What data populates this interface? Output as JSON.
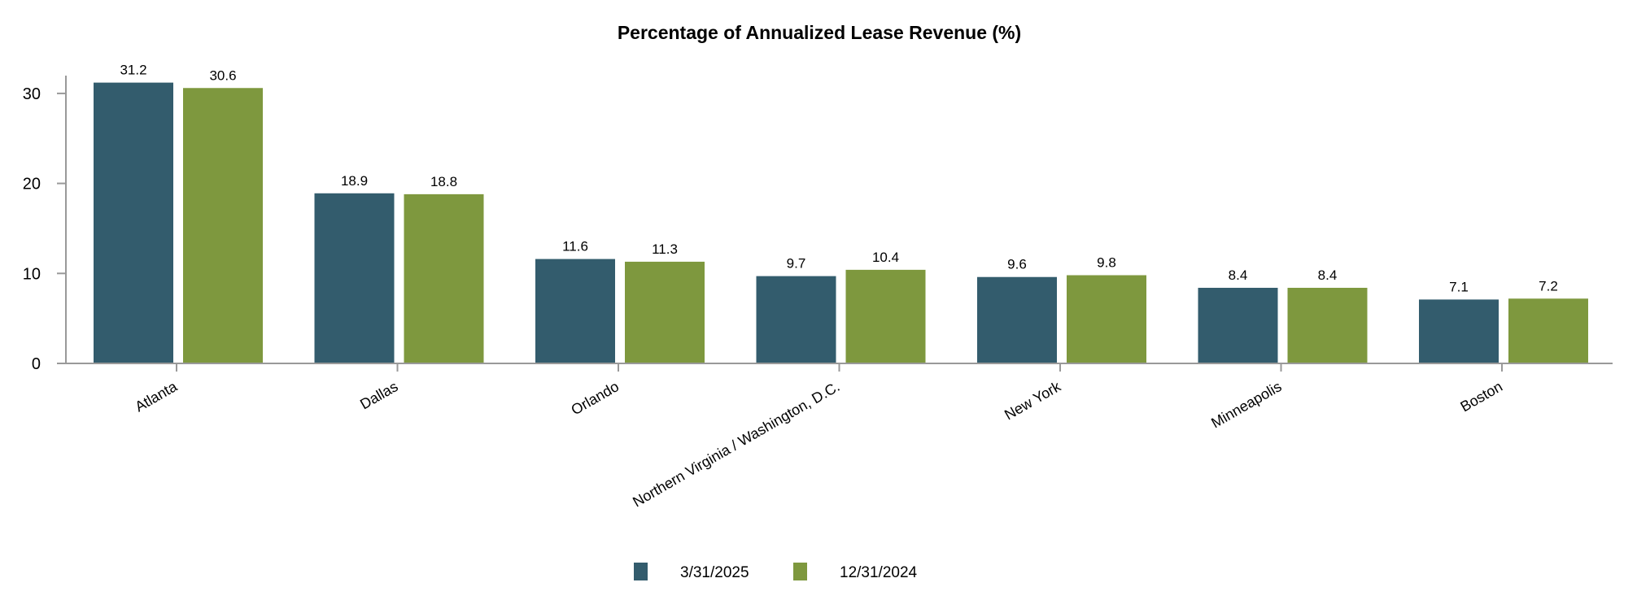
{
  "chart_data": {
    "type": "bar",
    "title": "Percentage of Annualized Lease Revenue (%)",
    "xlabel": "",
    "ylabel": "",
    "ylim": [
      0,
      32
    ],
    "yticks": [
      0,
      10,
      20,
      30
    ],
    "grid": false,
    "legend_position": "bottom",
    "categories": [
      "Atlanta",
      "Dallas",
      "Orlando",
      "Northern Virginia / Washington, D.C.",
      "New York",
      "Minneapolis",
      "Boston"
    ],
    "series": [
      {
        "name": "3/31/2025",
        "color": "#335c6d",
        "values": [
          31.2,
          18.9,
          11.6,
          9.7,
          9.6,
          8.4,
          7.1
        ]
      },
      {
        "name": "12/31/2024",
        "color": "#7e983e",
        "values": [
          30.6,
          18.8,
          11.3,
          10.4,
          9.8,
          8.4,
          7.2
        ]
      }
    ]
  }
}
